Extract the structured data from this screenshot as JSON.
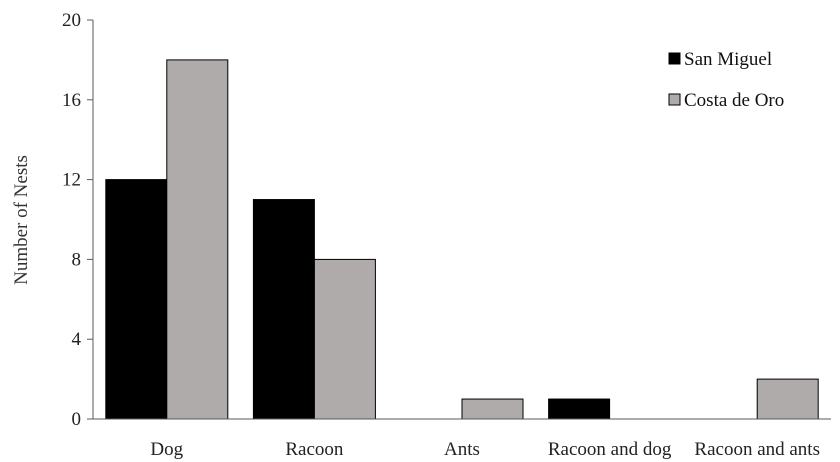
{
  "chart_data": {
    "type": "bar",
    "title": "",
    "xlabel": "",
    "ylabel": "Number of Nests",
    "ylim": [
      0,
      20
    ],
    "yticks": [
      0,
      4,
      8,
      12,
      16,
      20
    ],
    "categories": [
      "Dog",
      "Racoon",
      "Ants",
      "Racoon and dog",
      "Racoon and ants"
    ],
    "series": [
      {
        "name": "San Miguel",
        "color": "#000000",
        "values": [
          12,
          11,
          0,
          1,
          0
        ]
      },
      {
        "name": "Costa de Oro",
        "color": "#afabab",
        "values": [
          18,
          8,
          1,
          0,
          2
        ]
      }
    ],
    "grid": false,
    "legend_position": "top-right"
  }
}
